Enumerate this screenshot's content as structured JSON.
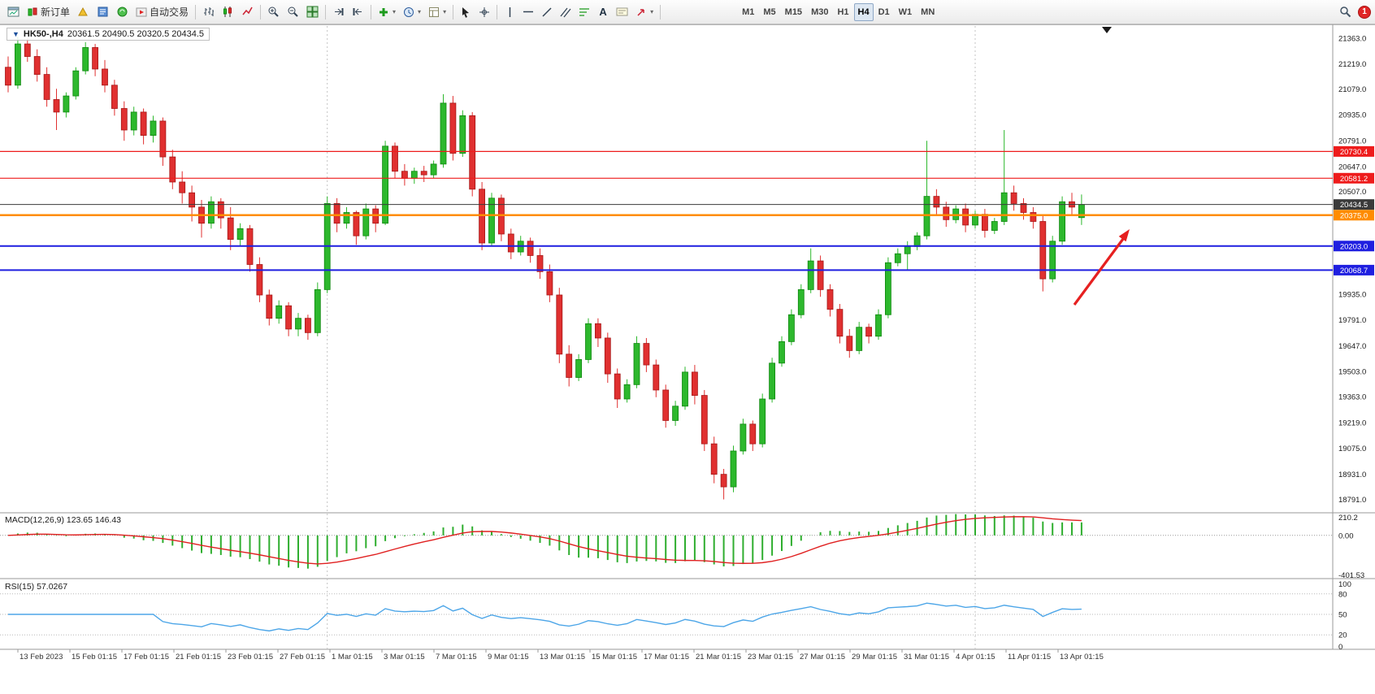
{
  "toolbar": {
    "new_order": "新订单",
    "auto_trading": "自动交易",
    "timeframes": [
      "M1",
      "M5",
      "M15",
      "M30",
      "H1",
      "H4",
      "D1",
      "W1",
      "MN"
    ],
    "active_timeframe": "H4",
    "notification_count": "1"
  },
  "chart": {
    "title_symbol": "HK50-,H4",
    "title_ohlc": "20361.5 20490.5 20320.5 20434.5",
    "price_axis_ticks": [
      21363.0,
      21219.0,
      21079.0,
      20935.0,
      20791.0,
      20647.0,
      20507.0,
      19935.0,
      19791.0,
      19647.0,
      19503.0,
      19363.0,
      19219.0,
      19075.0,
      18931.0,
      18791.0
    ],
    "levels": [
      {
        "price": 20730.4,
        "label": "20730.4",
        "color": "#ee1c1c",
        "width": 1.2
      },
      {
        "price": 20581.2,
        "label": "20581.2",
        "color": "#ee1c1c",
        "width": 1.2
      },
      {
        "price": 20434.5,
        "label": "20434.5",
        "color": "#3a3a3a",
        "width": 1
      },
      {
        "price": 20375.0,
        "label": "20375.0",
        "color": "#ff8c00",
        "width": 2.5
      },
      {
        "price": 20203.0,
        "label": "20203.0",
        "color": "#1f1fe0",
        "width": 2
      },
      {
        "price": 20068.7,
        "label": "20068.7",
        "color": "#1f1fe0",
        "width": 2
      }
    ],
    "month_separators": [
      33,
      100
    ],
    "time_labels": [
      "13 Feb 2023",
      "15 Feb 01:15",
      "17 Feb 01:15",
      "21 Feb 01:15",
      "23 Feb 01:15",
      "27 Feb 01:15",
      "1 Mar 01:15",
      "3 Mar 01:15",
      "7 Mar 01:15",
      "9 Mar 01:15",
      "13 Mar 01:15",
      "15 Mar 01:15",
      "17 Mar 01:15",
      "21 Mar 01:15",
      "23 Mar 01:15",
      "27 Mar 01:15",
      "29 Mar 01:15",
      "31 Mar 01:15",
      "4 Apr 01:15",
      "11 Apr 01:15",
      "13 Apr 01:15"
    ]
  },
  "indicators": {
    "macd": {
      "label": "MACD(12,26,9) 123.65 146.43",
      "axis_max": "210.2",
      "axis_zero": "0.00",
      "axis_min": "-401.53",
      "histogram_color": "#2fae2f",
      "signal_color": "#e02020"
    },
    "rsi": {
      "label": "RSI(15) 57.0267",
      "axis_labels": [
        "100",
        "80",
        "50",
        "20",
        "0"
      ],
      "level_lines": [
        80,
        50,
        20
      ],
      "line_color": "#4da6e8"
    }
  },
  "annotation": {
    "trend_arrow_color": "#e62020"
  },
  "chart_data": {
    "type": "candlestick",
    "symbol": "HK50-",
    "timeframe": "H4",
    "last_ohlc": {
      "open": 20361.5,
      "high": 20490.5,
      "low": 20320.5,
      "close": 20434.5
    },
    "price_range": [
      18720,
      21430
    ],
    "bull_color": "#2db82d",
    "bear_color": "#e03030",
    "candles": [
      [
        21200,
        21260,
        21060,
        21100
      ],
      [
        21100,
        21370,
        21080,
        21330
      ],
      [
        21330,
        21360,
        21230,
        21260
      ],
      [
        21260,
        21300,
        21120,
        21160
      ],
      [
        21160,
        21200,
        20980,
        21020
      ],
      [
        21020,
        21080,
        20850,
        20950
      ],
      [
        20950,
        21060,
        20920,
        21040
      ],
      [
        21040,
        21200,
        21020,
        21180
      ],
      [
        21180,
        21340,
        21160,
        21310
      ],
      [
        21310,
        21330,
        21150,
        21190
      ],
      [
        21190,
        21240,
        21060,
        21100
      ],
      [
        21100,
        21130,
        20930,
        20970
      ],
      [
        20970,
        21010,
        20790,
        20850
      ],
      [
        20850,
        20980,
        20820,
        20950
      ],
      [
        20950,
        20970,
        20770,
        20820
      ],
      [
        20820,
        20930,
        20780,
        20900
      ],
      [
        20900,
        20920,
        20650,
        20700
      ],
      [
        20700,
        20740,
        20520,
        20560
      ],
      [
        20560,
        20620,
        20440,
        20500
      ],
      [
        20500,
        20540,
        20340,
        20420
      ],
      [
        20420,
        20460,
        20250,
        20330
      ],
      [
        20330,
        20480,
        20300,
        20450
      ],
      [
        20450,
        20470,
        20300,
        20360
      ],
      [
        20360,
        20420,
        20180,
        20240
      ],
      [
        20240,
        20330,
        20200,
        20300
      ],
      [
        20300,
        20320,
        20060,
        20100
      ],
      [
        20100,
        20140,
        19890,
        19930
      ],
      [
        19930,
        19960,
        19760,
        19800
      ],
      [
        19800,
        19900,
        19770,
        19870
      ],
      [
        19870,
        19890,
        19700,
        19740
      ],
      [
        19740,
        19830,
        19700,
        19800
      ],
      [
        19800,
        19820,
        19680,
        19720
      ],
      [
        19720,
        20000,
        19700,
        19960
      ],
      [
        19960,
        20480,
        19940,
        20440
      ],
      [
        20440,
        20470,
        20280,
        20330
      ],
      [
        20330,
        20420,
        20300,
        20390
      ],
      [
        20390,
        20400,
        20210,
        20260
      ],
      [
        20260,
        20440,
        20240,
        20410
      ],
      [
        20410,
        20430,
        20280,
        20330
      ],
      [
        20330,
        20790,
        20320,
        20760
      ],
      [
        20760,
        20780,
        20580,
        20620
      ],
      [
        20620,
        20660,
        20540,
        20580
      ],
      [
        20580,
        20640,
        20550,
        20620
      ],
      [
        20620,
        20650,
        20560,
        20600
      ],
      [
        20600,
        20680,
        20580,
        20660
      ],
      [
        20660,
        21050,
        20640,
        21000
      ],
      [
        21000,
        21040,
        20680,
        20720
      ],
      [
        20720,
        20960,
        20700,
        20930
      ],
      [
        20930,
        20950,
        20480,
        20520
      ],
      [
        20520,
        20560,
        20180,
        20220
      ],
      [
        20220,
        20500,
        20200,
        20470
      ],
      [
        20470,
        20490,
        20230,
        20270
      ],
      [
        20270,
        20300,
        20130,
        20170
      ],
      [
        20170,
        20260,
        20150,
        20230
      ],
      [
        20230,
        20250,
        20110,
        20150
      ],
      [
        20150,
        20190,
        20020,
        20060
      ],
      [
        20060,
        20100,
        19890,
        19930
      ],
      [
        19930,
        19970,
        19550,
        19600
      ],
      [
        19600,
        19650,
        19420,
        19470
      ],
      [
        19470,
        19600,
        19450,
        19570
      ],
      [
        19570,
        19800,
        19550,
        19770
      ],
      [
        19770,
        19800,
        19640,
        19690
      ],
      [
        19690,
        19720,
        19440,
        19490
      ],
      [
        19490,
        19520,
        19300,
        19350
      ],
      [
        19350,
        19460,
        19330,
        19430
      ],
      [
        19430,
        19700,
        19410,
        19660
      ],
      [
        19660,
        19690,
        19500,
        19540
      ],
      [
        19540,
        19570,
        19360,
        19400
      ],
      [
        19400,
        19430,
        19190,
        19230
      ],
      [
        19230,
        19340,
        19200,
        19310
      ],
      [
        19310,
        19530,
        19290,
        19500
      ],
      [
        19500,
        19540,
        19320,
        19370
      ],
      [
        19370,
        19400,
        19060,
        19100
      ],
      [
        19100,
        19140,
        18880,
        18930
      ],
      [
        18930,
        18960,
        18790,
        18860
      ],
      [
        18860,
        19090,
        18830,
        19060
      ],
      [
        19060,
        19240,
        19040,
        19210
      ],
      [
        19210,
        19230,
        19060,
        19100
      ],
      [
        19100,
        19380,
        19080,
        19350
      ],
      [
        19350,
        19580,
        19330,
        19550
      ],
      [
        19550,
        19700,
        19530,
        19670
      ],
      [
        19670,
        19850,
        19650,
        19820
      ],
      [
        19820,
        19990,
        19800,
        19960
      ],
      [
        19960,
        20190,
        19940,
        20120
      ],
      [
        20120,
        20150,
        19920,
        19960
      ],
      [
        19960,
        19990,
        19810,
        19850
      ],
      [
        19850,
        19880,
        19660,
        19700
      ],
      [
        19700,
        19740,
        19580,
        19620
      ],
      [
        19620,
        19780,
        19600,
        19750
      ],
      [
        19750,
        19770,
        19660,
        19700
      ],
      [
        19700,
        19850,
        19680,
        19820
      ],
      [
        19820,
        20140,
        19800,
        20110
      ],
      [
        20110,
        20190,
        20090,
        20160
      ],
      [
        20160,
        20230,
        20070,
        20200
      ],
      [
        20200,
        20280,
        20180,
        20260
      ],
      [
        20260,
        20790,
        20240,
        20480
      ],
      [
        20480,
        20520,
        20380,
        20420
      ],
      [
        20420,
        20450,
        20310,
        20350
      ],
      [
        20350,
        20430,
        20330,
        20410
      ],
      [
        20410,
        20440,
        20280,
        20320
      ],
      [
        20320,
        20400,
        20300,
        20380
      ],
      [
        20380,
        20410,
        20250,
        20290
      ],
      [
        20290,
        20360,
        20270,
        20340
      ],
      [
        20340,
        20850,
        20320,
        20500
      ],
      [
        20500,
        20540,
        20400,
        20440
      ],
      [
        20440,
        20470,
        20350,
        20390
      ],
      [
        20390,
        20420,
        20300,
        20340
      ],
      [
        20340,
        20380,
        19950,
        20020
      ],
      [
        20020,
        20260,
        20000,
        20230
      ],
      [
        20230,
        20480,
        20210,
        20450
      ],
      [
        20450,
        20500,
        20380,
        20420
      ],
      [
        20361.5,
        20490.5,
        20320.5,
        20434.5
      ]
    ]
  }
}
